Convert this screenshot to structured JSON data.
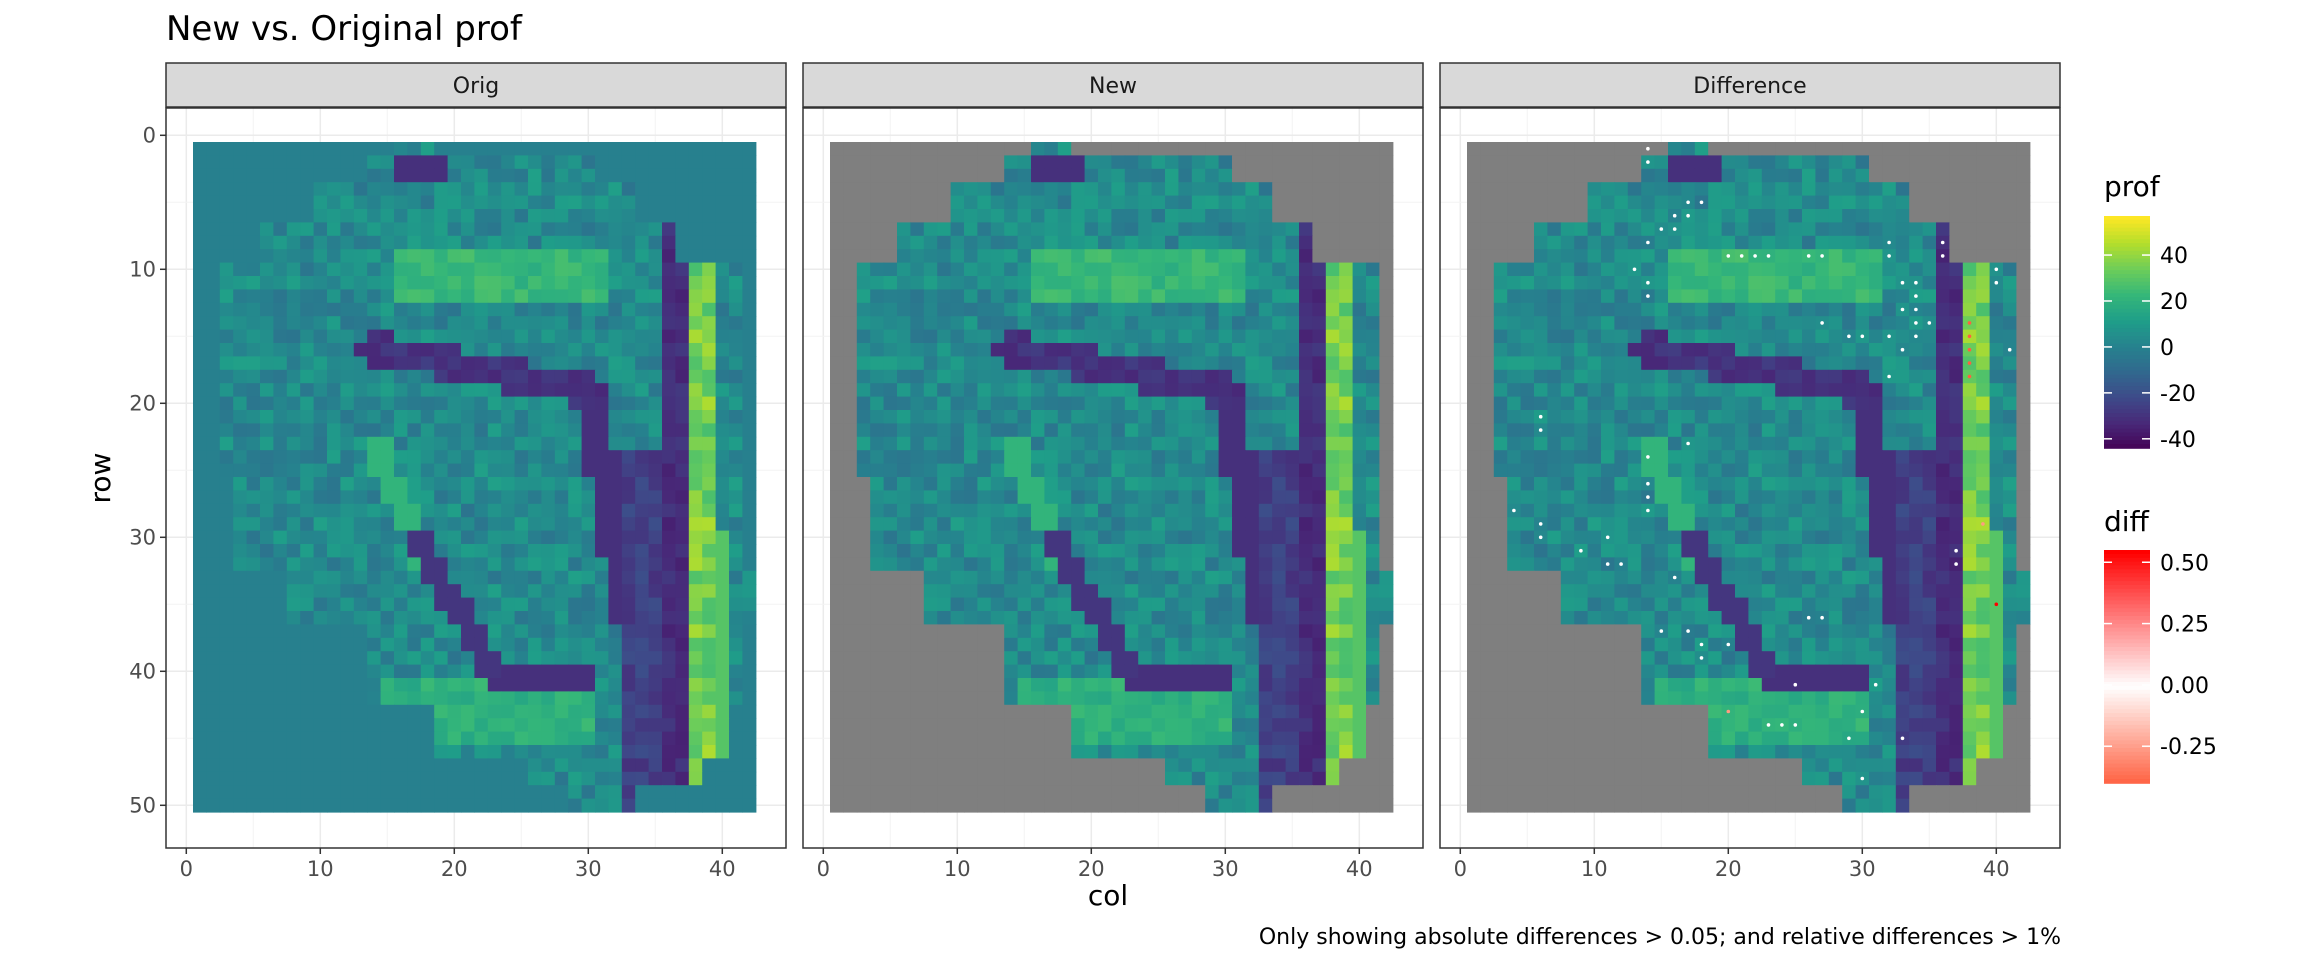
{
  "chart_data": {
    "type": "heatmap",
    "title": "New vs. Original prof",
    "caption": "Only showing absolute differences > 0.05; and relative differences > 1%",
    "facets": [
      "Orig",
      "New",
      "Difference"
    ],
    "xlabel": "col",
    "ylabel": "row",
    "x_range": [
      1,
      42
    ],
    "y_range": [
      1,
      50
    ],
    "y_reversed": true,
    "x_ticks": [
      0,
      10,
      20,
      30,
      40
    ],
    "y_ticks": [
      0,
      10,
      20,
      30,
      40,
      50
    ],
    "fill_scale": {
      "name": "prof",
      "type": "viridis",
      "breaks": [
        40,
        20,
        0,
        -20,
        -40
      ],
      "limits": [
        -44,
        57
      ],
      "na_color": "#7f7f7f"
    },
    "point_scale": {
      "name": "diff",
      "breaks": [
        0.5,
        0.25,
        0.0,
        -0.25
      ],
      "limits": [
        -0.4,
        0.55
      ],
      "low": "#ff6040",
      "mid": "#ffffff",
      "high": "#ff0000"
    },
    "bands": {
      "top_horizontal": {
        "cols": [
          16,
          31
        ],
        "rows": [
          9,
          12
        ],
        "value": 28
      },
      "right_strip_bright": {
        "cols": [
          38,
          39
        ],
        "value": 45
      },
      "right_strip_dark": {
        "cols": [
          36,
          37
        ],
        "value": -35
      }
    },
    "diff_points": [
      {
        "col": 14,
        "row": 1,
        "diff": 0.0
      },
      {
        "col": 14,
        "row": 2,
        "diff": 0.0
      },
      {
        "col": 17,
        "row": 5,
        "diff": 0.0
      },
      {
        "col": 18,
        "row": 5,
        "diff": 0.0
      },
      {
        "col": 16,
        "row": 6,
        "diff": 0.0
      },
      {
        "col": 17,
        "row": 6,
        "diff": 0.0
      },
      {
        "col": 15,
        "row": 7,
        "diff": 0.0
      },
      {
        "col": 16,
        "row": 7,
        "diff": 0.0
      },
      {
        "col": 14,
        "row": 8,
        "diff": 0.0
      },
      {
        "col": 20,
        "row": 9,
        "diff": 0.0
      },
      {
        "col": 21,
        "row": 9,
        "diff": 0.0
      },
      {
        "col": 22,
        "row": 9,
        "diff": 0.0
      },
      {
        "col": 23,
        "row": 9,
        "diff": 0.0
      },
      {
        "col": 26,
        "row": 9,
        "diff": 0.0
      },
      {
        "col": 27,
        "row": 9,
        "diff": 0.0
      },
      {
        "col": 13,
        "row": 10,
        "diff": 0.0
      },
      {
        "col": 14,
        "row": 11,
        "diff": 0.0
      },
      {
        "col": 14,
        "row": 12,
        "diff": 0.0
      },
      {
        "col": 32,
        "row": 8,
        "diff": 0.0
      },
      {
        "col": 32,
        "row": 9,
        "diff": 0.0
      },
      {
        "col": 36,
        "row": 8,
        "diff": 0.0
      },
      {
        "col": 36,
        "row": 9,
        "diff": 0.0
      },
      {
        "col": 33,
        "row": 11,
        "diff": 0.0
      },
      {
        "col": 34,
        "row": 11,
        "diff": 0.0
      },
      {
        "col": 34,
        "row": 12,
        "diff": 0.0
      },
      {
        "col": 33,
        "row": 13,
        "diff": 0.0
      },
      {
        "col": 34,
        "row": 13,
        "diff": 0.0
      },
      {
        "col": 34,
        "row": 14,
        "diff": 0.0
      },
      {
        "col": 35,
        "row": 14,
        "diff": 0.0
      },
      {
        "col": 32,
        "row": 15,
        "diff": 0.0
      },
      {
        "col": 34,
        "row": 15,
        "diff": 0.0
      },
      {
        "col": 33,
        "row": 16,
        "diff": 0.0
      },
      {
        "col": 29,
        "row": 15,
        "diff": 0.0
      },
      {
        "col": 30,
        "row": 15,
        "diff": 0.0
      },
      {
        "col": 27,
        "row": 14,
        "diff": 0.0
      },
      {
        "col": 32,
        "row": 18,
        "diff": 0.0
      },
      {
        "col": 40,
        "row": 10,
        "diff": 0.0
      },
      {
        "col": 40,
        "row": 11,
        "diff": 0.0
      },
      {
        "col": 41,
        "row": 16,
        "diff": 0.0
      },
      {
        "col": 38,
        "row": 14,
        "diff": -0.3
      },
      {
        "col": 38,
        "row": 15,
        "diff": -0.3
      },
      {
        "col": 38,
        "row": 16,
        "diff": -0.3
      },
      {
        "col": 38,
        "row": 17,
        "diff": -0.3
      },
      {
        "col": 38,
        "row": 18,
        "diff": -0.3
      },
      {
        "col": 6,
        "row": 21,
        "diff": 0.0
      },
      {
        "col": 6,
        "row": 22,
        "diff": 0.0
      },
      {
        "col": 17,
        "row": 23,
        "diff": 0.0
      },
      {
        "col": 14,
        "row": 24,
        "diff": 0.0
      },
      {
        "col": 14,
        "row": 26,
        "diff": 0.0
      },
      {
        "col": 14,
        "row": 27,
        "diff": 0.0
      },
      {
        "col": 14,
        "row": 28,
        "diff": 0.0
      },
      {
        "col": 4,
        "row": 28,
        "diff": 0.0
      },
      {
        "col": 6,
        "row": 29,
        "diff": 0.0
      },
      {
        "col": 6,
        "row": 30,
        "diff": 0.0
      },
      {
        "col": 11,
        "row": 30,
        "diff": 0.0
      },
      {
        "col": 9,
        "row": 31,
        "diff": 0.0
      },
      {
        "col": 11,
        "row": 32,
        "diff": 0.0
      },
      {
        "col": 12,
        "row": 32,
        "diff": 0.0
      },
      {
        "col": 16,
        "row": 33,
        "diff": 0.0
      },
      {
        "col": 15,
        "row": 37,
        "diff": 0.0
      },
      {
        "col": 17,
        "row": 37,
        "diff": 0.0
      },
      {
        "col": 18,
        "row": 38,
        "diff": 0.0
      },
      {
        "col": 20,
        "row": 38,
        "diff": 0.0
      },
      {
        "col": 18,
        "row": 39,
        "diff": 0.0
      },
      {
        "col": 26,
        "row": 36,
        "diff": 0.0
      },
      {
        "col": 27,
        "row": 36,
        "diff": 0.0
      },
      {
        "col": 25,
        "row": 41,
        "diff": 0.0
      },
      {
        "col": 31,
        "row": 41,
        "diff": 0.0
      },
      {
        "col": 20,
        "row": 43,
        "diff": 0.3
      },
      {
        "col": 30,
        "row": 43,
        "diff": 0.0
      },
      {
        "col": 23,
        "row": 44,
        "diff": 0.0
      },
      {
        "col": 24,
        "row": 44,
        "diff": 0.0
      },
      {
        "col": 25,
        "row": 44,
        "diff": 0.0
      },
      {
        "col": 29,
        "row": 45,
        "diff": 0.0
      },
      {
        "col": 33,
        "row": 45,
        "diff": 0.0
      },
      {
        "col": 30,
        "row": 48,
        "diff": 0.0
      },
      {
        "col": 37,
        "row": 31,
        "diff": 0.0
      },
      {
        "col": 37,
        "row": 32,
        "diff": 0.0
      },
      {
        "col": 39,
        "row": 29,
        "diff": 0.4
      },
      {
        "col": 40,
        "row": 35,
        "diff": 0.5
      }
    ]
  }
}
